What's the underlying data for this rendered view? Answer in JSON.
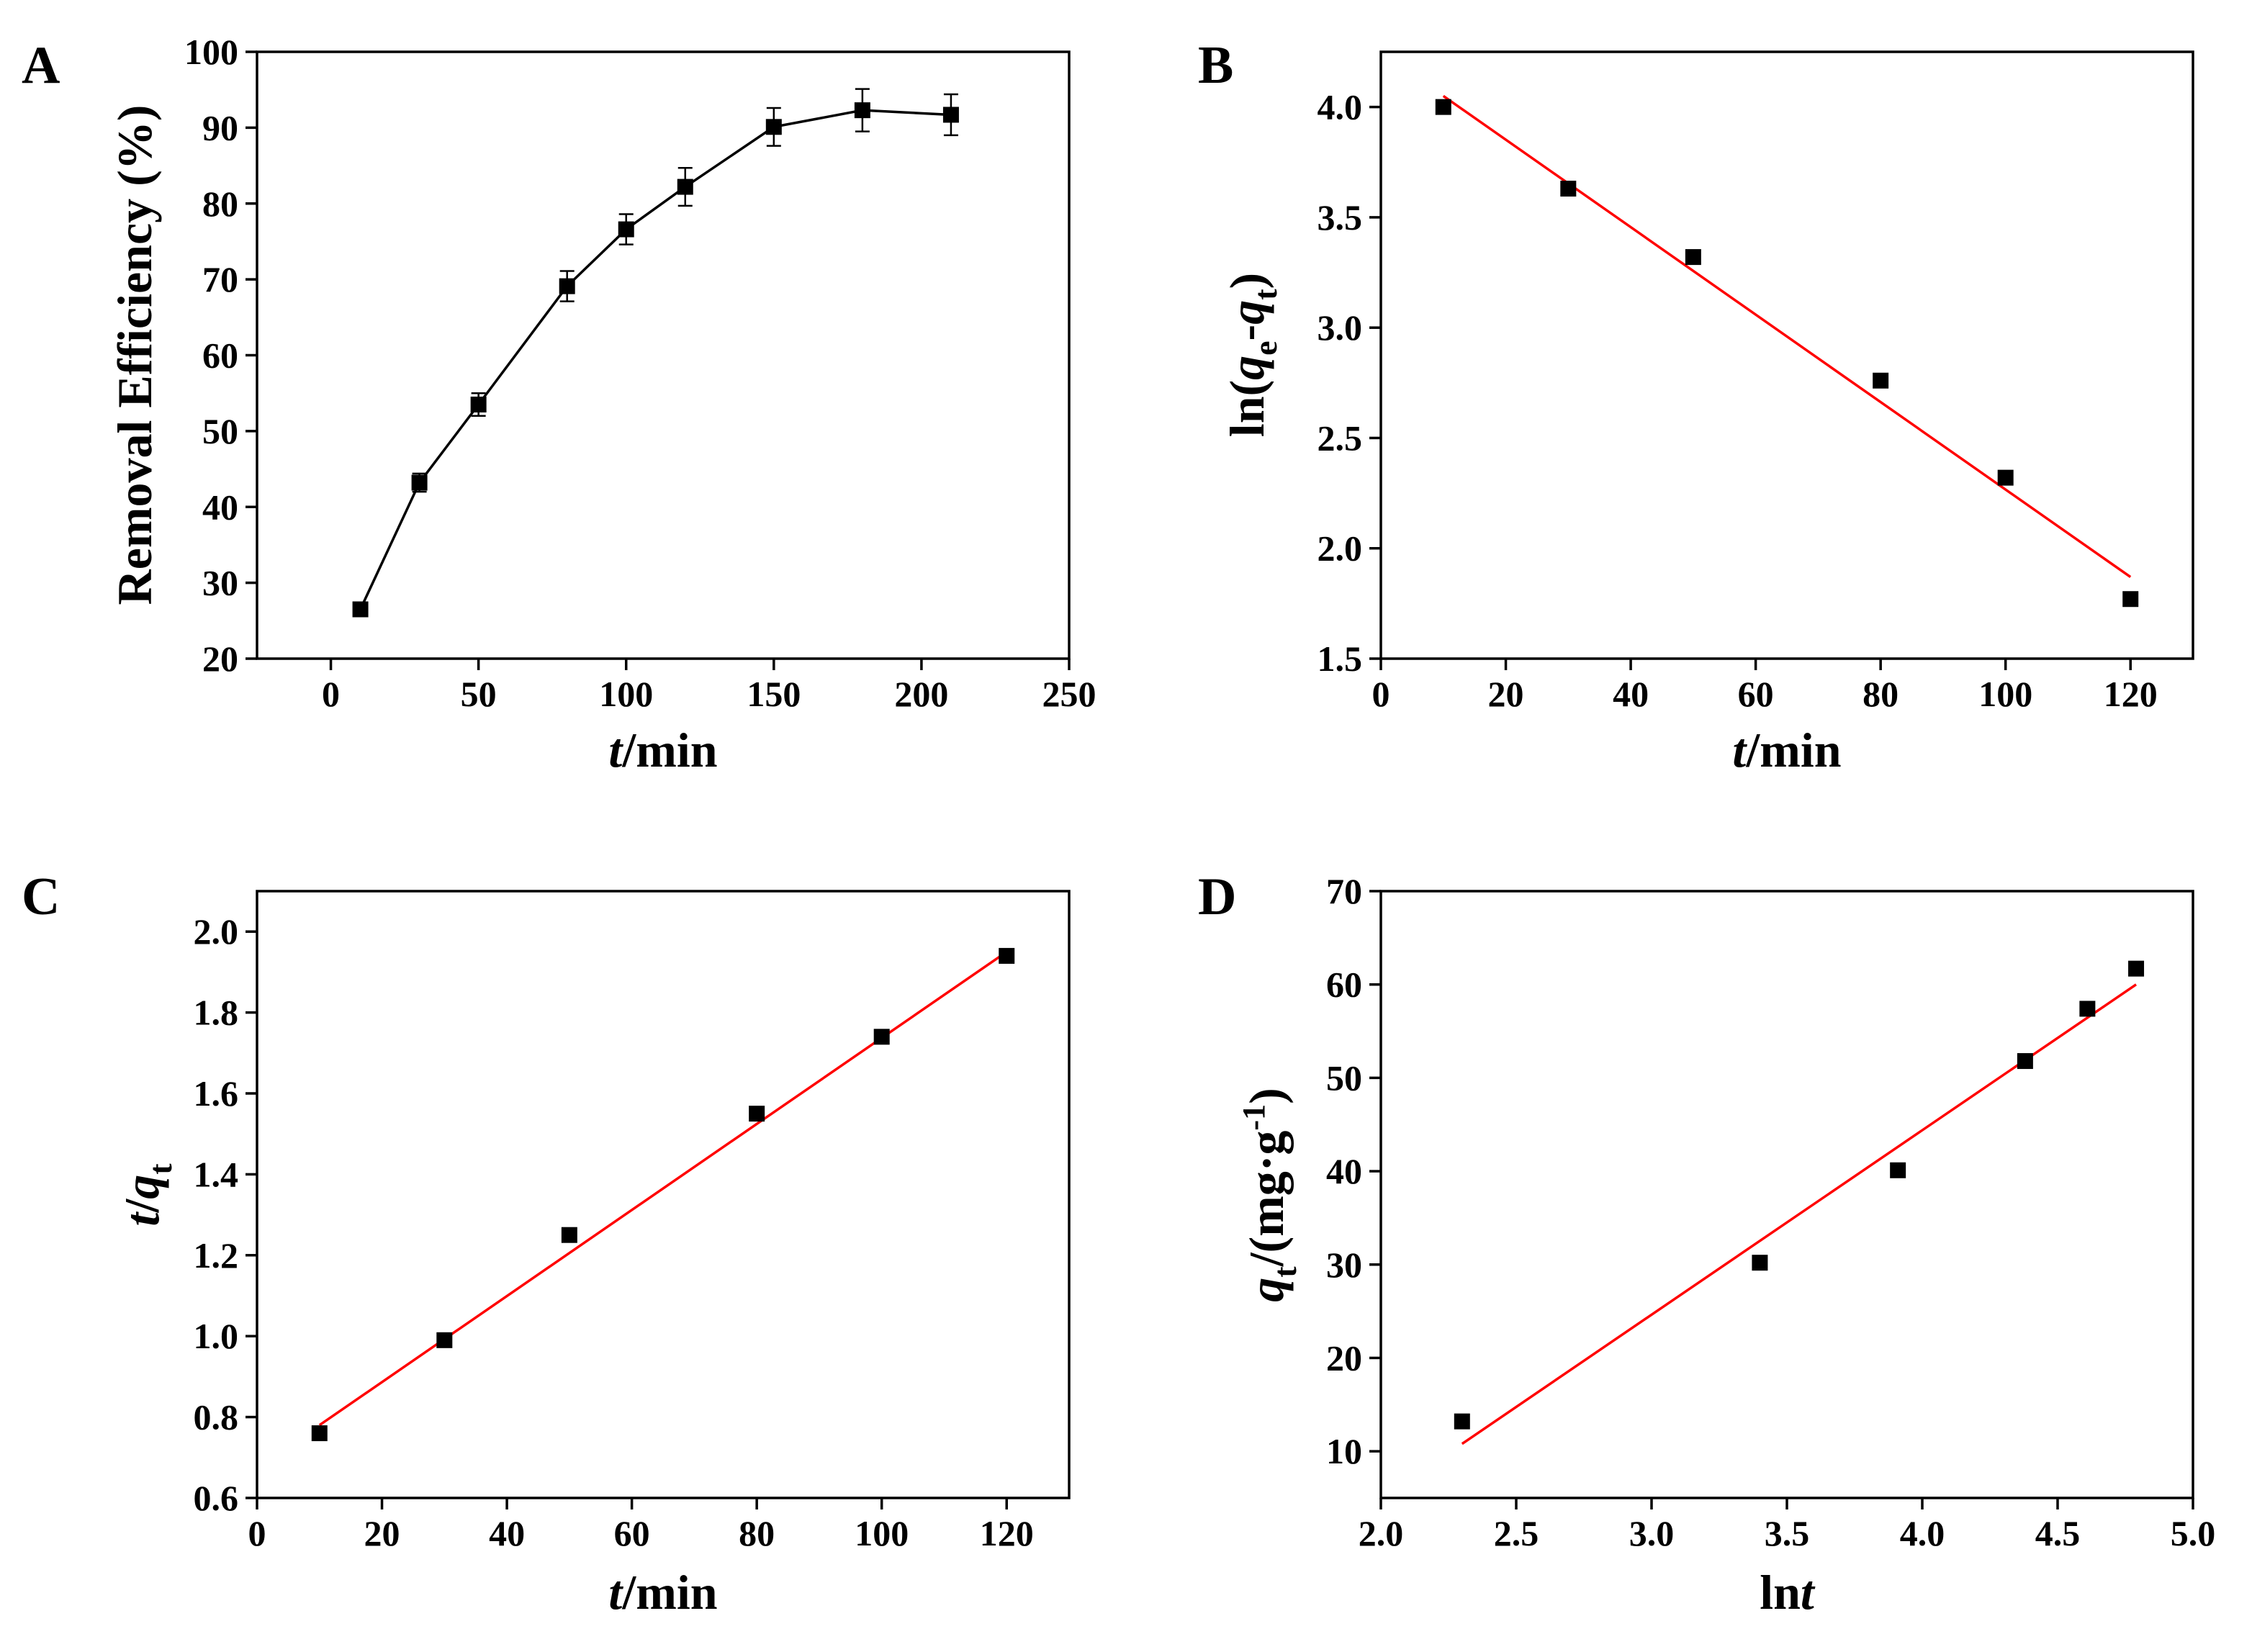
{
  "colors": {
    "fit_line": "#ff0000",
    "data": "#000000",
    "background": "#ffffff"
  },
  "chart_data": [
    {
      "id": "A",
      "panel_label": "A",
      "type": "line",
      "xlabel": {
        "italic": "t",
        "rest": "/min"
      },
      "ylabel": {
        "text": "Removal Efficiency (%)"
      },
      "xlim": [
        -25,
        250
      ],
      "ylim": [
        20,
        100
      ],
      "xticks": [
        0,
        50,
        100,
        150,
        200,
        250
      ],
      "xtick_labels": [
        "0",
        "50",
        "100",
        "150",
        "200",
        "250"
      ],
      "yticks": [
        20,
        30,
        40,
        50,
        60,
        70,
        80,
        90,
        100
      ],
      "ytick_labels": [
        "20",
        "30",
        "40",
        "50",
        "60",
        "70",
        "80",
        "90",
        "100"
      ],
      "connect_points": true,
      "x": [
        10,
        30,
        50,
        80,
        100,
        120,
        150,
        180,
        210
      ],
      "y": [
        26.5,
        43.2,
        53.5,
        69.1,
        76.6,
        82.2,
        90.1,
        92.3,
        91.7
      ],
      "yerr": [
        0.8,
        1.2,
        1.5,
        2.0,
        2.0,
        2.5,
        2.5,
        2.8,
        2.7
      ]
    },
    {
      "id": "B",
      "panel_label": "B",
      "type": "scatter",
      "xlabel": {
        "italic": "t",
        "rest": "/min"
      },
      "ylabel": {
        "text": "ln(qe-qt)",
        "base": "ln(",
        "q1": "q",
        "s1": "e",
        "mid": "-",
        "q2": "q",
        "s2": "t",
        "end": ")"
      },
      "xlim": [
        0,
        130
      ],
      "ylim": [
        1.5,
        4.25
      ],
      "xticks": [
        0,
        20,
        40,
        60,
        80,
        100,
        120
      ],
      "xtick_labels": [
        "0",
        "20",
        "40",
        "60",
        "80",
        "100",
        "120"
      ],
      "yticks": [
        1.5,
        2.0,
        2.5,
        3.0,
        3.5,
        4.0
      ],
      "ytick_labels": [
        "1.5",
        "2.0",
        "2.5",
        "3.0",
        "3.5",
        "4.0"
      ],
      "x": [
        10,
        30,
        50,
        80,
        100,
        120
      ],
      "y": [
        4.0,
        3.63,
        3.32,
        2.76,
        2.32,
        1.77
      ],
      "fit": {
        "x": [
          10,
          120
        ],
        "y": [
          4.05,
          1.87
        ]
      }
    },
    {
      "id": "C",
      "panel_label": "C",
      "type": "scatter",
      "xlabel": {
        "italic": "t",
        "rest": "/min"
      },
      "ylabel": {
        "text": "t/qt",
        "t": "t",
        "slash": "/",
        "q": "q",
        "sub": "t"
      },
      "xlim": [
        0,
        130
      ],
      "ylim": [
        0.6,
        2.1
      ],
      "xticks": [
        0,
        20,
        40,
        60,
        80,
        100,
        120
      ],
      "xtick_labels": [
        "0",
        "20",
        "40",
        "60",
        "80",
        "100",
        "120"
      ],
      "yticks": [
        0.6,
        0.8,
        1.0,
        1.2,
        1.4,
        1.6,
        1.8,
        2.0
      ],
      "ytick_labels": [
        "0.6",
        "0.8",
        "1.0",
        "1.2",
        "1.4",
        "1.6",
        "1.8",
        "2.0"
      ],
      "x": [
        10,
        30,
        50,
        80,
        100,
        120
      ],
      "y": [
        0.76,
        0.99,
        1.25,
        1.55,
        1.74,
        1.94
      ],
      "fit": {
        "x": [
          10,
          120
        ],
        "y": [
          0.78,
          1.95
        ]
      }
    },
    {
      "id": "D",
      "panel_label": "D",
      "type": "scatter",
      "xlabel": {
        "text": "lnt",
        "plain": "ln",
        "italic": "t"
      },
      "ylabel": {
        "text": "qt/(mg·g-1)",
        "q": "q",
        "sub": "t",
        "rest": "/(mg·g",
        "sup": "-1",
        "end": ")"
      },
      "xlim": [
        2.0,
        5.0
      ],
      "ylim": [
        5,
        70
      ],
      "xticks": [
        2.0,
        2.5,
        3.0,
        3.5,
        4.0,
        4.5,
        5.0
      ],
      "xtick_labels": [
        "2.0",
        "2.5",
        "3.0",
        "3.5",
        "4.0",
        "4.5",
        "5.0"
      ],
      "yticks": [
        10,
        20,
        30,
        40,
        50,
        60,
        70
      ],
      "ytick_labels": [
        "10",
        "20",
        "30",
        "40",
        "50",
        "60",
        "70"
      ],
      "x": [
        2.3,
        3.4,
        3.91,
        4.38,
        4.61,
        4.79
      ],
      "y": [
        13.2,
        30.2,
        40.1,
        51.8,
        57.4,
        61.7
      ],
      "fit": {
        "x": [
          2.3,
          4.79
        ],
        "y": [
          10.8,
          60.0
        ]
      }
    }
  ]
}
